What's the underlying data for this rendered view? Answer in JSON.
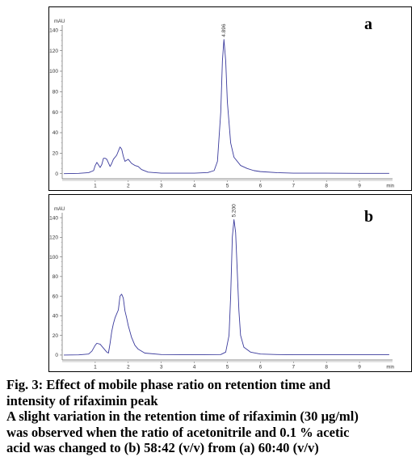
{
  "chart_data": [
    {
      "type": "line",
      "panel_label": "a",
      "ylabel": "mAU",
      "xlabel_unit": "min",
      "xlim": [
        0,
        10
      ],
      "ylim": [
        -5,
        145
      ],
      "y_ticks": [
        0,
        20,
        40,
        60,
        80,
        100,
        120,
        140
      ],
      "x_ticks": [
        1,
        2,
        3,
        4,
        5,
        6,
        7,
        8,
        9
      ],
      "peak_label": "4.896",
      "peak_x": 4.896,
      "series": [
        {
          "color": "#3a3a9c",
          "x": [
            0.05,
            0.5,
            0.8,
            0.95,
            1.0,
            1.05,
            1.15,
            1.2,
            1.25,
            1.3,
            1.35,
            1.45,
            1.5,
            1.55,
            1.65,
            1.75,
            1.8,
            1.85,
            1.9,
            2.0,
            2.1,
            2.2,
            2.3,
            2.4,
            2.6,
            3.0,
            3.5,
            4.0,
            4.4,
            4.6,
            4.7,
            4.8,
            4.85,
            4.896,
            4.95,
            5.0,
            5.1,
            5.2,
            5.4,
            5.6,
            5.8,
            6.0,
            6.5,
            7.0,
            8.0,
            9.0,
            9.9
          ],
          "y": [
            0,
            0.3,
            1,
            3,
            8,
            11,
            6,
            9,
            15,
            15,
            14,
            7,
            10,
            14,
            18,
            26,
            24,
            17,
            12,
            14,
            10,
            8,
            7,
            4,
            1.5,
            0.5,
            0.5,
            0.5,
            1,
            3,
            12,
            60,
            110,
            131,
            110,
            70,
            30,
            16,
            8,
            5,
            3,
            2,
            1,
            0.5,
            0.5,
            0.3,
            0.3
          ]
        }
      ]
    },
    {
      "type": "line",
      "panel_label": "b",
      "ylabel": "mAU",
      "xlabel_unit": "min",
      "xlim": [
        0,
        10
      ],
      "ylim": [
        -5,
        145
      ],
      "y_ticks": [
        0,
        20,
        40,
        60,
        80,
        100,
        120,
        140
      ],
      "x_ticks": [
        1,
        2,
        3,
        4,
        5,
        6,
        7,
        8,
        9
      ],
      "peak_label": "5.200",
      "peak_x": 5.2,
      "series": [
        {
          "color": "#3a3a9c",
          "x": [
            0.05,
            0.5,
            0.8,
            0.9,
            1.0,
            1.05,
            1.15,
            1.25,
            1.35,
            1.4,
            1.45,
            1.5,
            1.55,
            1.6,
            1.7,
            1.75,
            1.8,
            1.85,
            1.9,
            1.95,
            2.0,
            2.1,
            2.2,
            2.3,
            2.5,
            3.0,
            4.0,
            4.8,
            4.95,
            5.05,
            5.1,
            5.15,
            5.2,
            5.25,
            5.3,
            5.35,
            5.4,
            5.5,
            5.7,
            6.0,
            6.5,
            7.0,
            8.0,
            9.0,
            9.9
          ],
          "y": [
            0,
            0.2,
            1,
            4,
            10,
            12,
            11,
            7,
            3,
            2,
            12,
            24,
            32,
            38,
            46,
            60,
            62,
            58,
            45,
            38,
            30,
            18,
            10,
            6,
            2,
            0.5,
            0.3,
            0.5,
            3,
            20,
            60,
            120,
            138,
            125,
            85,
            45,
            20,
            8,
            3,
            1,
            0.5,
            0.3,
            0.3,
            0.3,
            0.3
          ]
        }
      ]
    }
  ],
  "caption": {
    "line1": "Fig. 3: Effect of mobile phase ratio on retention time and",
    "line2": "intensity of rifaximin peak",
    "line3": "A slight variation in the retention time of rifaximin (30 μg/ml)",
    "line4": "was observed when the ratio of acetonitrile and 0.1 % acetic",
    "line5": "acid was changed to (b) 58:42 (v/v) from (a) 60:40 (v/v)"
  }
}
